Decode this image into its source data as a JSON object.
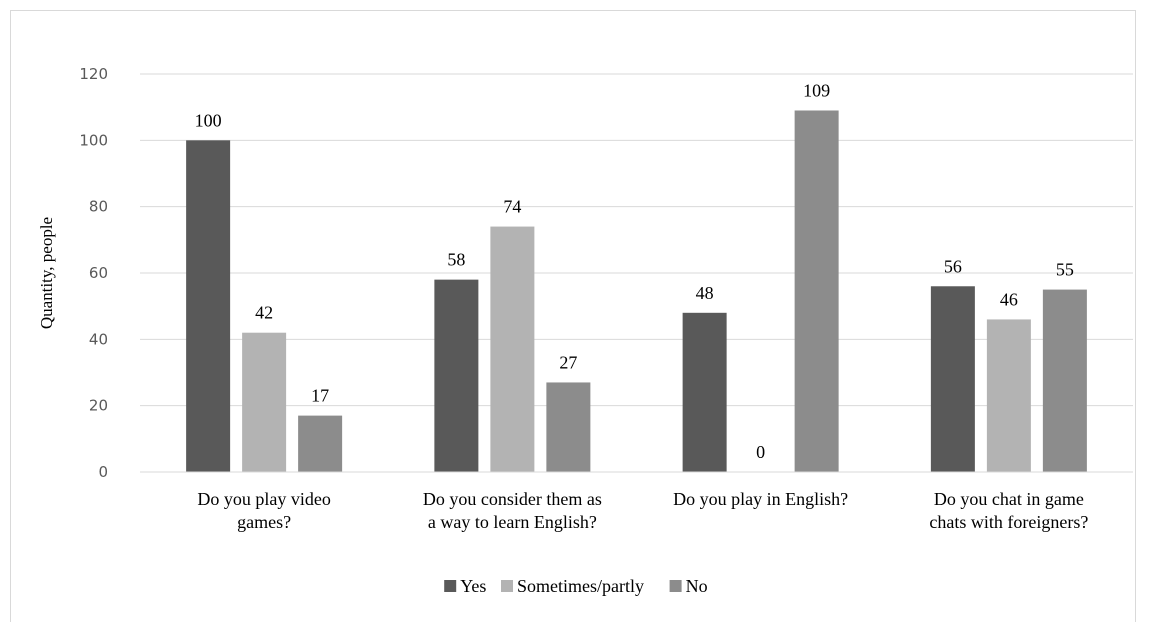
{
  "chart_data": {
    "type": "bar",
    "title": "",
    "ylabel": "Quantity, people",
    "xlabel": "",
    "ylim": [
      0,
      120
    ],
    "yticks": [
      0,
      20,
      40,
      60,
      80,
      100,
      120
    ],
    "grid": true,
    "legend_position": "bottom",
    "categories": [
      [
        "Do you play video",
        "games?"
      ],
      [
        "Do you consider them as",
        "a way to learn English?"
      ],
      [
        "Do you play in English?"
      ],
      [
        "Do you chat in game",
        "chats with foreigners?"
      ]
    ],
    "series": [
      {
        "name": "Yes",
        "color": "#595959",
        "values": [
          100,
          58,
          48,
          56
        ]
      },
      {
        "name": "Sometimes/partly",
        "color": "#b3b3b3",
        "values": [
          42,
          74,
          0,
          46
        ]
      },
      {
        "name": "No",
        "color": "#8c8c8c",
        "values": [
          17,
          27,
          109,
          55
        ]
      }
    ]
  }
}
